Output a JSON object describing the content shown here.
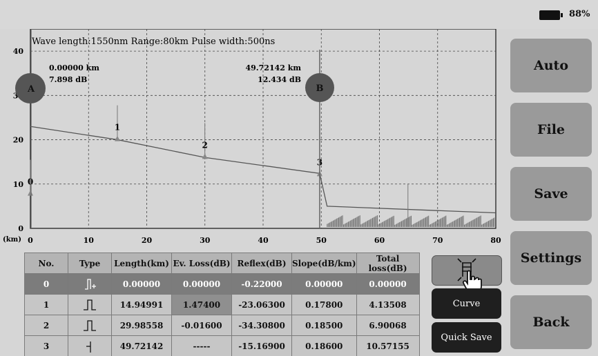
{
  "status": {
    "battery_percent": "88%",
    "battery_level": 0.88
  },
  "chart_info": "Wave length:1550nm   Range:80km   Pulse width:500ns",
  "cursor_a": {
    "letter": "A",
    "distance": "0.00000 km",
    "value": "7.898 dB"
  },
  "cursor_b": {
    "letter": "B",
    "distance": "49.72142 km",
    "value": "12.434 dB"
  },
  "y_unit": "(km)",
  "chart_data": {
    "type": "line",
    "x_ticks": [
      0,
      10,
      20,
      30,
      40,
      50,
      60,
      70,
      80
    ],
    "y_ticks": [
      0,
      10,
      20,
      30,
      40
    ],
    "xlim": [
      0,
      80
    ],
    "ylim": [
      0,
      45
    ],
    "grid": true,
    "trace": [
      [
        0,
        23
      ],
      [
        15,
        20
      ],
      [
        30,
        16
      ],
      [
        49.72,
        12.4
      ],
      [
        51,
        5
      ],
      [
        80,
        3.5
      ]
    ],
    "events": [
      {
        "label": "0",
        "x": 0,
        "y": 8
      },
      {
        "label": "1",
        "x": 14.95,
        "y": 20.3
      },
      {
        "label": "2",
        "x": 29.99,
        "y": 16.3
      },
      {
        "label": "3",
        "x": 49.72,
        "y": 12.4
      }
    ]
  },
  "side_buttons": {
    "auto": "Auto",
    "file": "File",
    "save": "Save",
    "settings": "Settings",
    "back": "Back"
  },
  "action_buttons": {
    "curve": "Curve",
    "quick_save": "Quick Save"
  },
  "table": {
    "headers": [
      "No.",
      "Type",
      "Length(km)",
      "Ev. Loss(dB)",
      "Reflex(dB)",
      "Slope(dB/km)",
      "Total loss(dB)"
    ],
    "rows": [
      [
        "0",
        "start",
        "0.00000",
        "0.00000",
        "-0.22000",
        "0.00000",
        "0.00000"
      ],
      [
        "1",
        "reflect",
        "14.94991",
        "1.47400",
        "-23.06300",
        "0.17800",
        "4.13508"
      ],
      [
        "2",
        "reflect",
        "29.98558",
        "-0.01600",
        "-34.30800",
        "0.18500",
        "6.90068"
      ],
      [
        "3",
        "end",
        "49.72142",
        "-----",
        "-15.16900",
        "0.18600",
        "10.57155"
      ]
    ]
  }
}
